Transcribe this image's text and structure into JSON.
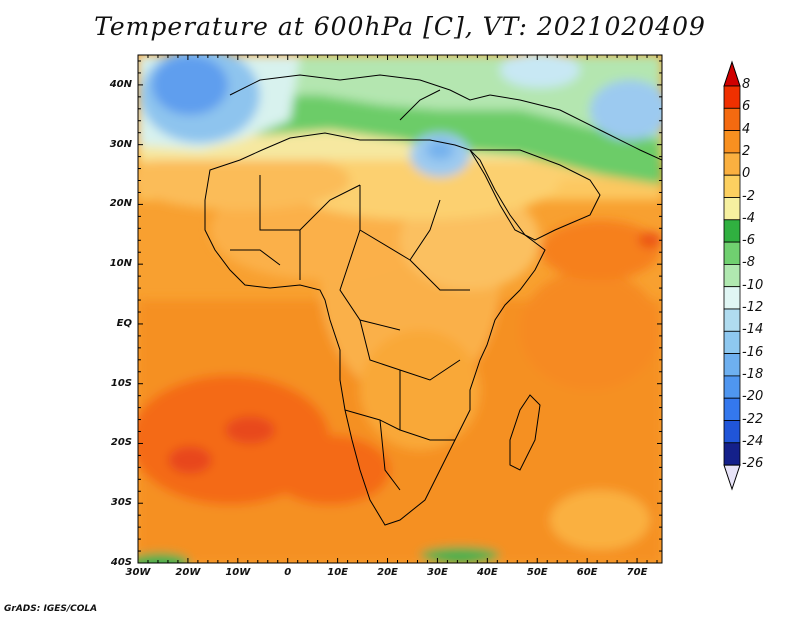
{
  "title": "Temperature at 600hPa [C], VT: 2021020409",
  "credit": "GrADS: IGES/COLA",
  "chart_data": {
    "type": "heatmap",
    "variable": "Temperature",
    "level": "600hPa",
    "units": "C",
    "valid_time": "2021020409",
    "lon_range": [
      -30,
      75
    ],
    "lat_range": [
      -40,
      45
    ],
    "x_ticks": [
      "30W",
      "20W",
      "10W",
      "0",
      "10E",
      "20E",
      "30E",
      "40E",
      "50E",
      "60E",
      "70E"
    ],
    "y_ticks": [
      "40N",
      "30N",
      "20N",
      "10N",
      "EQ",
      "10S",
      "20S",
      "30S",
      "40S"
    ],
    "colorbar": {
      "levels": [
        8,
        6,
        4,
        2,
        0,
        -2,
        -4,
        -6,
        -8,
        -10,
        -12,
        -14,
        -16,
        -18,
        -20,
        -22,
        -24,
        -26
      ],
      "colors": [
        "#d00000",
        "#f03000",
        "#f56a10",
        "#f89020",
        "#fab040",
        "#fcd060",
        "#f6f0a0",
        "#30b040",
        "#70d070",
        "#b0e8b0",
        "#e0f6f4",
        "#b0dcf0",
        "#8ec8f0",
        "#6eb0f0",
        "#4f96f0",
        "#3478ee",
        "#2055d8",
        "#14208a",
        "#e8e4f8"
      ]
    }
  }
}
